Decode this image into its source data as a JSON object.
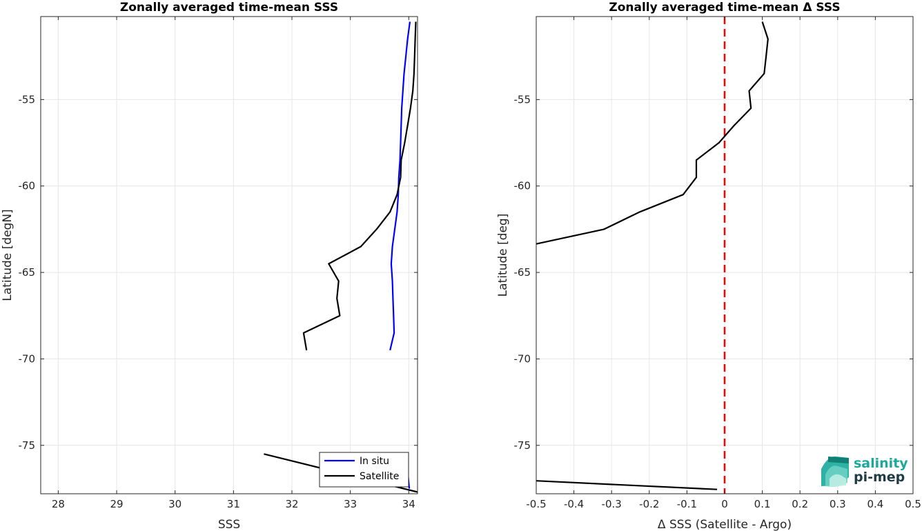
{
  "chart_data": [
    {
      "type": "line",
      "title": "Zonally averaged time-mean SSS",
      "xlabel": "SSS",
      "ylabel": "Latitude [degN]",
      "xlim": [
        27.7,
        34.15
      ],
      "ylim": [
        -77.8,
        -50.2
      ],
      "xticks": [
        28,
        29,
        30,
        31,
        32,
        33,
        34
      ],
      "yticks": [
        -75,
        -70,
        -65,
        -60,
        -55
      ],
      "grid": true,
      "legend": {
        "position": "bottom-right",
        "entries": [
          "In situ",
          "Satellite"
        ]
      },
      "series": [
        {
          "name": "In situ",
          "color": "#0000ff",
          "segments": [
            [
              [
                34.02,
                -50.5
              ],
              [
                33.98,
                -51.5
              ],
              [
                33.95,
                -52.5
              ],
              [
                33.92,
                -53.5
              ],
              [
                33.9,
                -54.5
              ],
              [
                33.88,
                -55.5
              ],
              [
                33.87,
                -56.5
              ],
              [
                33.86,
                -57.5
              ],
              [
                33.85,
                -58.5
              ],
              [
                33.83,
                -59.5
              ],
              [
                33.82,
                -60.5
              ],
              [
                33.8,
                -61.5
              ],
              [
                33.76,
                -62.5
              ],
              [
                33.72,
                -63.5
              ],
              [
                33.7,
                -64.5
              ],
              [
                33.72,
                -65.5
              ],
              [
                33.73,
                -66.5
              ],
              [
                33.74,
                -67.5
              ],
              [
                33.75,
                -68.5
              ],
              [
                33.68,
                -69.5
              ]
            ],
            [
              [
                33.98,
                -76.5
              ],
              [
                34.01,
                -77.5
              ]
            ]
          ]
        },
        {
          "name": "Satellite",
          "color": "#000000",
          "segments": [
            [
              [
                34.12,
                -50.5
              ],
              [
                34.11,
                -51.5
              ],
              [
                34.1,
                -52.5
              ],
              [
                34.09,
                -53.5
              ],
              [
                34.07,
                -54.5
              ],
              [
                34.03,
                -55.5
              ],
              [
                33.98,
                -56.5
              ],
              [
                33.93,
                -57.5
              ],
              [
                33.87,
                -58.5
              ],
              [
                33.86,
                -59.5
              ],
              [
                33.8,
                -60.5
              ],
              [
                33.68,
                -61.5
              ],
              [
                33.45,
                -62.5
              ],
              [
                33.18,
                -63.5
              ],
              [
                32.63,
                -64.5
              ],
              [
                32.8,
                -65.5
              ],
              [
                32.77,
                -66.5
              ],
              [
                32.82,
                -67.5
              ],
              [
                32.2,
                -68.5
              ],
              [
                32.25,
                -69.5
              ]
            ],
            [
              [
                31.52,
                -75.5
              ],
              [
                34.15,
                -77.7
              ]
            ]
          ]
        }
      ]
    },
    {
      "type": "line",
      "title": "Zonally averaged time-mean Δ SSS",
      "xlabel": "Δ SSS (Satellite - Argo)",
      "ylabel": "Latitude [deg]",
      "xlim": [
        -0.5,
        0.5
      ],
      "ylim": [
        -77.8,
        -50.2
      ],
      "xticks": [
        -0.5,
        -0.4,
        -0.3,
        -0.2,
        -0.1,
        0,
        0.1,
        0.2,
        0.3,
        0.4,
        0.5
      ],
      "yticks": [
        -75,
        -70,
        -65,
        -60,
        -55
      ],
      "grid": true,
      "reference_line": {
        "x": 0,
        "color": "#ff0000",
        "style": "dashed"
      },
      "series": [
        {
          "color": "#000000",
          "segments": [
            [
              [
                0.1,
                -50.5
              ],
              [
                0.115,
                -51.5
              ],
              [
                0.11,
                -52.5
              ],
              [
                0.105,
                -53.5
              ],
              [
                0.065,
                -54.5
              ],
              [
                0.07,
                -55.5
              ],
              [
                0.025,
                -56.5
              ],
              [
                -0.015,
                -57.5
              ],
              [
                -0.075,
                -58.5
              ],
              [
                -0.075,
                -59.5
              ],
              [
                -0.11,
                -60.5
              ],
              [
                -0.225,
                -61.5
              ],
              [
                -0.32,
                -62.5
              ],
              [
                -0.5,
                -63.35
              ]
            ],
            [
              [
                -0.5,
                -77.05
              ],
              [
                -0.02,
                -77.55
              ]
            ]
          ]
        }
      ]
    }
  ],
  "logo": {
    "line1": "salinity",
    "line2": "pi-mep"
  }
}
